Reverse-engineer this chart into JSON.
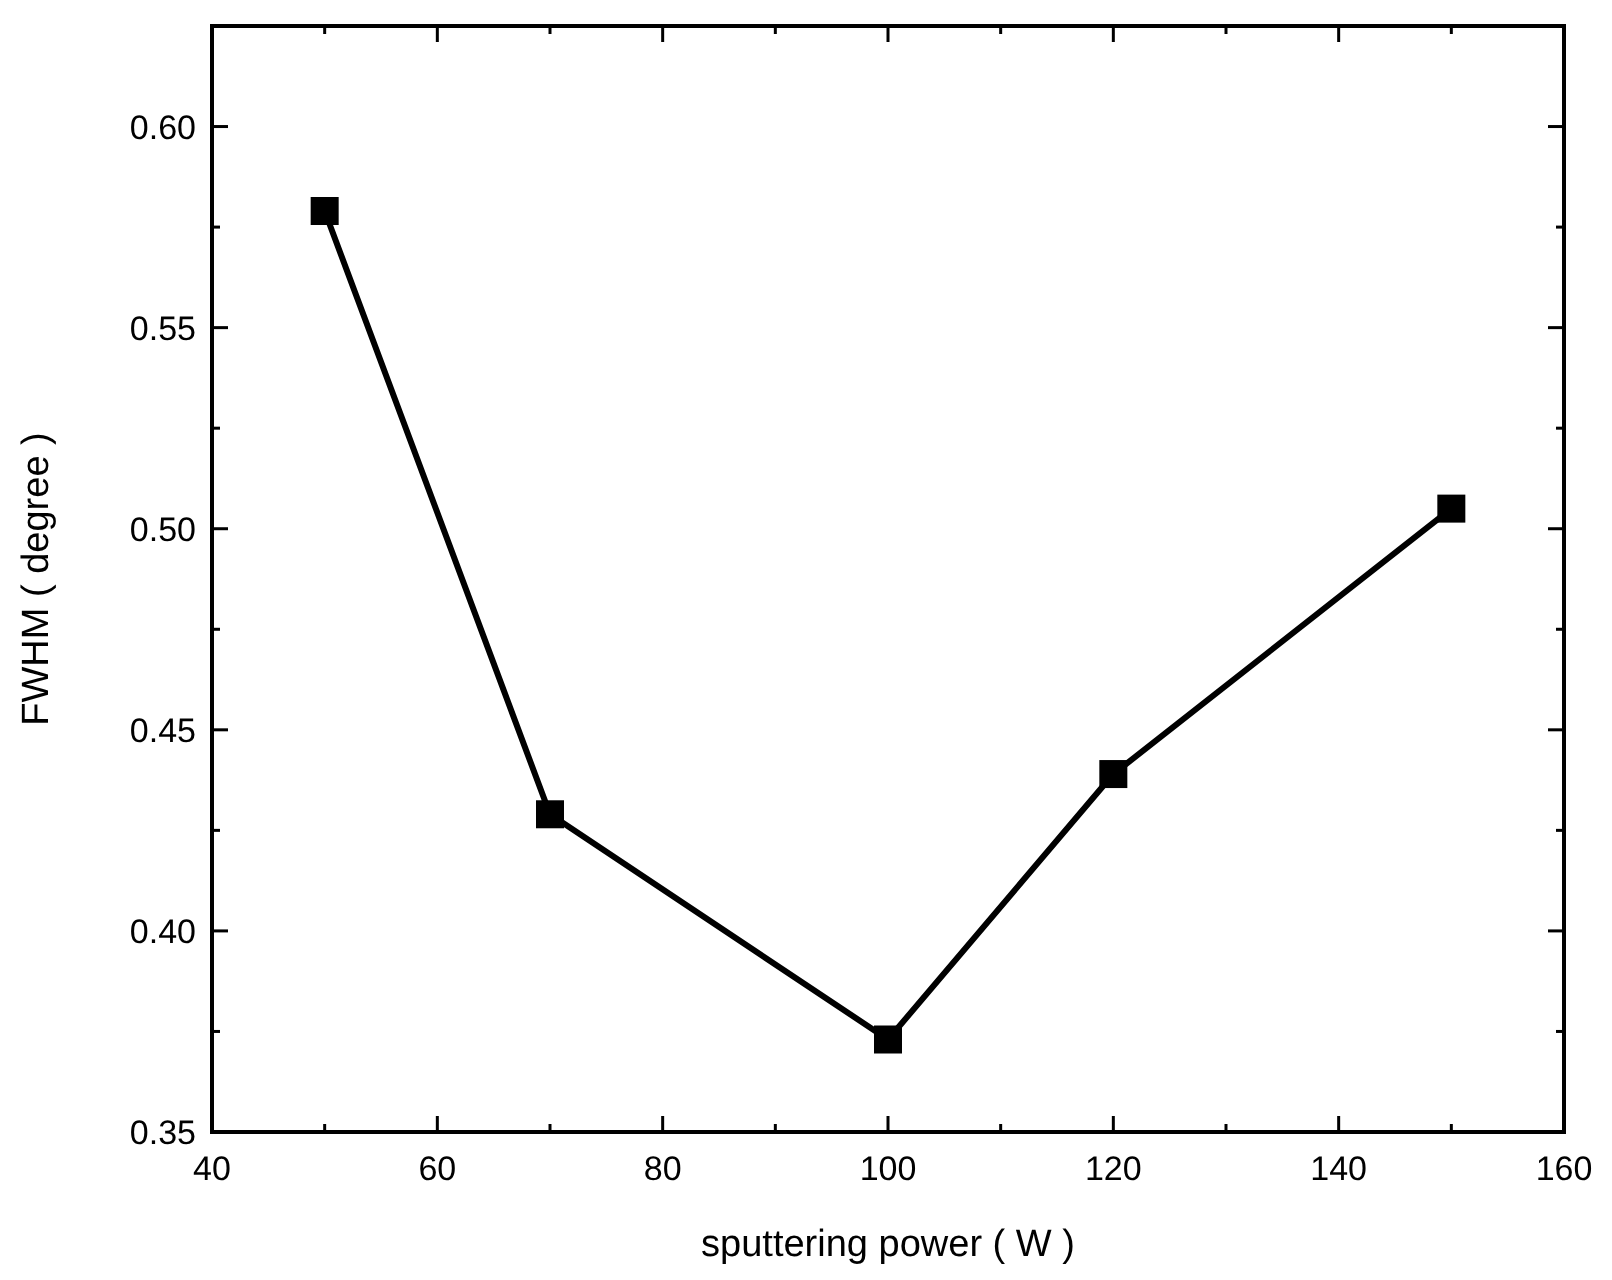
{
  "chart_data": {
    "type": "line",
    "xlabel": "sputtering power ( W )",
    "ylabel": "FWHM ( degree )",
    "x": [
      50,
      70,
      100,
      120,
      150
    ],
    "series": [
      {
        "color": "#000000",
        "values": [
          0.579,
          0.429,
          0.373,
          0.439,
          0.505
        ]
      }
    ],
    "xlim": [
      40,
      160
    ],
    "xticks": [
      40,
      60,
      80,
      100,
      120,
      140,
      160
    ],
    "ylim": [
      0.35,
      0.625
    ],
    "yticks": [
      {
        "value": 0.35,
        "label": "0.35"
      },
      {
        "value": 0.4,
        "label": "0.40"
      },
      {
        "value": 0.45,
        "label": "0.45"
      },
      {
        "value": 0.5,
        "label": "0.50"
      },
      {
        "value": 0.55,
        "label": "0.55"
      },
      {
        "value": 0.6,
        "label": "0.60"
      }
    ],
    "marker": "square",
    "line_style": "solid"
  }
}
